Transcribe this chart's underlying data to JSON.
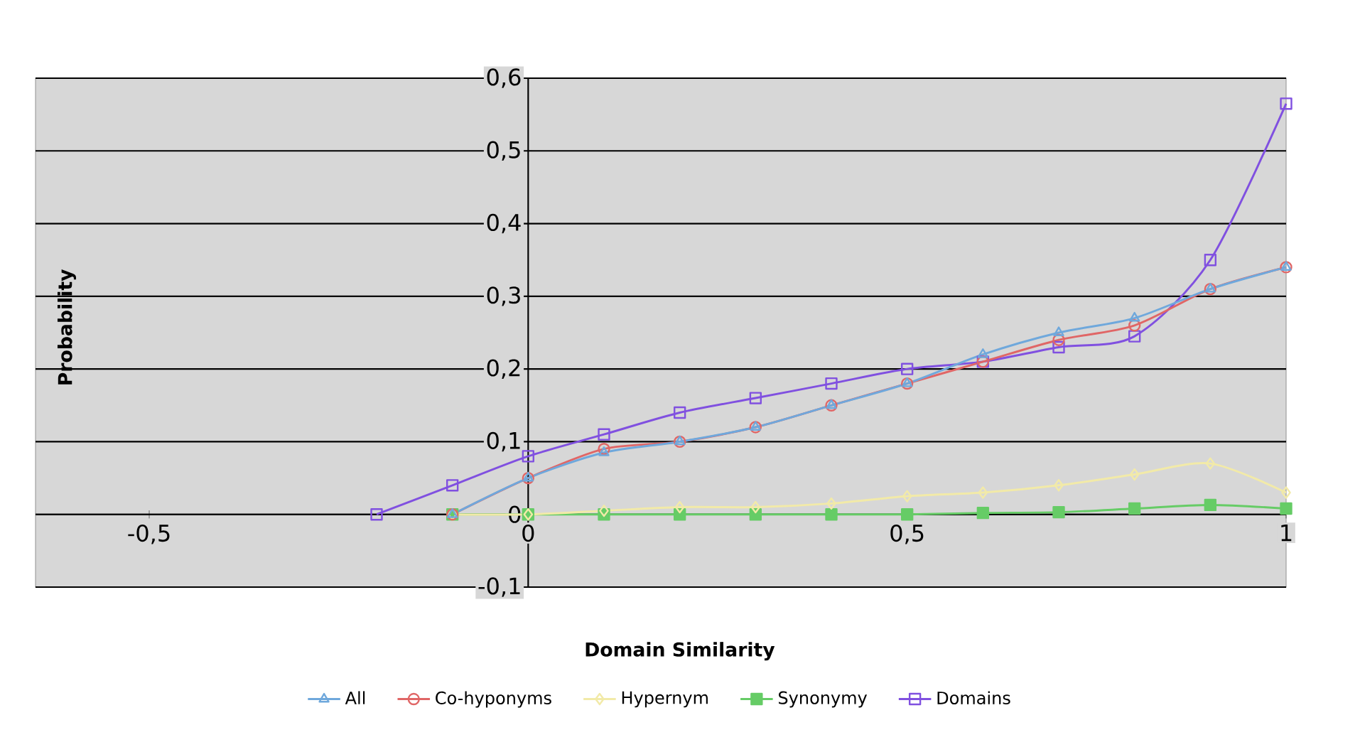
{
  "chart_data": {
    "type": "line",
    "xlabel": "Domain Similarity",
    "ylabel": "Probability",
    "xlim": [
      -0.65,
      1.0
    ],
    "ylim": [
      -0.1,
      0.6
    ],
    "xticks": [
      {
        "value": -0.5,
        "label": "-0,5"
      },
      0,
      {
        "value": 0.5,
        "label": "0,5"
      },
      1
    ],
    "yticks": [
      {
        "value": -0.1,
        "label": "-0,1"
      },
      0,
      {
        "value": 0.1,
        "label": "0,1"
      },
      {
        "value": 0.2,
        "label": "0,2"
      },
      {
        "value": 0.3,
        "label": "0,3"
      },
      {
        "value": 0.4,
        "label": "0,4"
      },
      {
        "value": 0.5,
        "label": "0,5"
      },
      {
        "value": 0.6,
        "label": "0,6"
      }
    ],
    "grid": "y",
    "legend": "bottom",
    "series": [
      {
        "name": "All",
        "color": "#6fa8dc",
        "marker": "triangle",
        "x": [
          -0.1,
          0,
          0.1,
          0.2,
          0.3,
          0.4,
          0.5,
          0.6,
          0.7,
          0.8,
          0.9,
          1.0
        ],
        "values": [
          0,
          0.05,
          0.085,
          0.1,
          0.12,
          0.15,
          0.18,
          0.22,
          0.25,
          0.27,
          0.31,
          0.34
        ]
      },
      {
        "name": "Co-hyponyms",
        "color": "#e06666",
        "marker": "circle",
        "x": [
          -0.1,
          0,
          0.1,
          0.2,
          0.3,
          0.4,
          0.5,
          0.6,
          0.7,
          0.8,
          0.9,
          1.0
        ],
        "values": [
          0,
          0.05,
          0.09,
          0.1,
          0.12,
          0.15,
          0.18,
          0.21,
          0.24,
          0.26,
          0.31,
          0.34
        ]
      },
      {
        "name": "Hypernym",
        "color": "#f2eaa8",
        "marker": "diamond",
        "x": [
          -0.1,
          0,
          0.1,
          0.2,
          0.3,
          0.4,
          0.5,
          0.6,
          0.7,
          0.8,
          0.9,
          1.0
        ],
        "values": [
          0,
          0,
          0.005,
          0.01,
          0.01,
          0.015,
          0.025,
          0.03,
          0.04,
          0.055,
          0.07,
          0.03
        ]
      },
      {
        "name": "Synonymy",
        "color": "#66cc66",
        "marker": "square*",
        "x": [
          -0.1,
          0,
          0.1,
          0.2,
          0.3,
          0.4,
          0.5,
          0.6,
          0.7,
          0.8,
          0.9,
          1.0
        ],
        "values": [
          0,
          0,
          0,
          0,
          0,
          0,
          0,
          0.002,
          0.003,
          0.008,
          0.013,
          0.008
        ]
      },
      {
        "name": "Domains",
        "color": "#8050e0",
        "marker": "square",
        "x": [
          -0.2,
          -0.1,
          0,
          0.1,
          0.2,
          0.3,
          0.4,
          0.5,
          0.6,
          0.7,
          0.8,
          0.9,
          1.0
        ],
        "values": [
          0,
          0.04,
          0.08,
          0.11,
          0.14,
          0.16,
          0.18,
          0.2,
          0.21,
          0.23,
          0.245,
          0.35,
          0.565
        ]
      }
    ]
  }
}
